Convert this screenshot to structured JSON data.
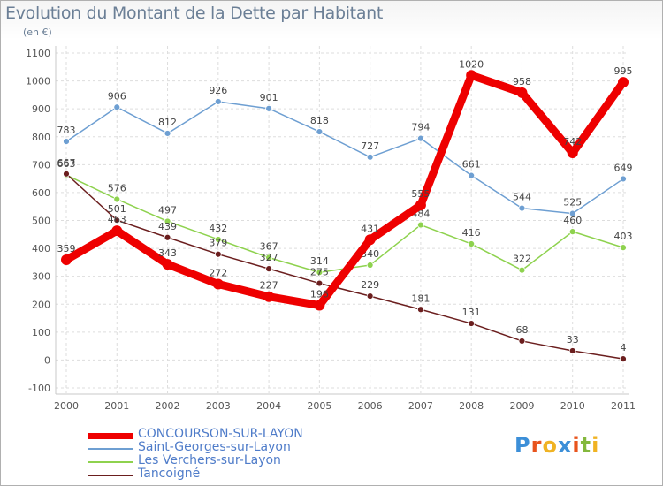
{
  "title": "Evolution du Montant de la Dette par Habitant",
  "unit_label": "(en €)",
  "logo_text": "Proxiti",
  "logo_colors": [
    "#3c8fd8",
    "#e8541d",
    "#f0b323",
    "#3c8fd8",
    "#e8541d",
    "#84b83d",
    "#f0b323"
  ],
  "chart_data": {
    "type": "line",
    "x": [
      "2000",
      "2001",
      "2002",
      "2003",
      "2004",
      "2005",
      "2006",
      "2007",
      "2008",
      "2009",
      "2010",
      "2011"
    ],
    "ylim": [
      -100,
      1100
    ],
    "yticks": [
      "-100",
      "0",
      "100",
      "200",
      "300",
      "400",
      "500",
      "600",
      "700",
      "800",
      "900",
      "1000",
      "1100"
    ],
    "grid": true,
    "legend_position": "bottom-left",
    "series": [
      {
        "name": "CONCOURSON-SUR-LAYON",
        "color": "#ee0000",
        "thick": true,
        "values": [
          359,
          463,
          343,
          272,
          227,
          196,
          431,
          555,
          1020,
          958,
          742,
          995
        ],
        "labels": [
          "359",
          "463",
          "343",
          "272",
          "227",
          "196",
          "431",
          "555",
          "1020",
          "958",
          "742",
          "995"
        ]
      },
      {
        "name": "Saint-Georges-sur-Layon",
        "color": "#6e9fd2",
        "thick": false,
        "values": [
          783,
          906,
          812,
          926,
          901,
          818,
          727,
          794,
          661,
          544,
          525,
          649
        ],
        "labels": [
          "783",
          "906",
          "812",
          "926",
          "901",
          "818",
          "727",
          "794",
          "661",
          "544",
          "525",
          "649"
        ]
      },
      {
        "name": "Les Verchers-sur-Layon",
        "color": "#8ed24e",
        "thick": false,
        "values": [
          663,
          576,
          497,
          432,
          367,
          314,
          340,
          484,
          416,
          322,
          460,
          403
        ],
        "labels": [
          "663",
          "576",
          "497",
          "432",
          "367",
          "314",
          "340",
          "484",
          "416",
          "322",
          "460",
          "403"
        ]
      },
      {
        "name": "Tancoigné",
        "color": "#6b1e1e",
        "thick": false,
        "values": [
          667,
          501,
          439,
          379,
          327,
          275,
          229,
          181,
          131,
          68,
          33,
          4
        ],
        "labels": [
          "667",
          "501",
          "439",
          "379",
          "327",
          "275",
          "229",
          "181",
          "131",
          "68",
          "33",
          "4"
        ]
      }
    ]
  }
}
